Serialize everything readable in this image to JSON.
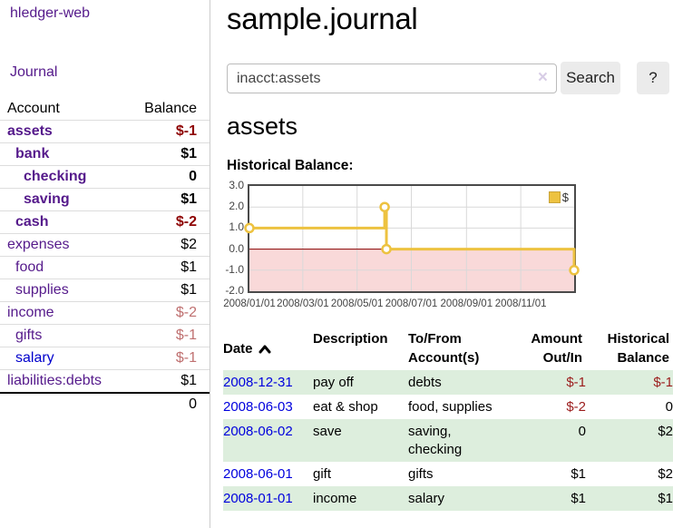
{
  "sidebar": {
    "brand": "hledger-web",
    "nav_journal": "Journal",
    "accounts_table": {
      "headers": {
        "account": "Account",
        "balance": "Balance"
      },
      "rows": [
        {
          "account": "assets",
          "depth": 0,
          "bold": true,
          "balance": "$-1",
          "balance_style": "neg-strong"
        },
        {
          "account": "bank",
          "depth": 1,
          "bold": true,
          "balance": "$1",
          "balance_style": "pos"
        },
        {
          "account": "checking",
          "depth": 2,
          "bold": true,
          "balance": "0",
          "balance_style": "pos"
        },
        {
          "account": "saving",
          "depth": 2,
          "bold": true,
          "balance": "$1",
          "balance_style": "pos"
        },
        {
          "account": "cash",
          "depth": 1,
          "bold": true,
          "balance": "$-2",
          "balance_style": "neg-strong"
        },
        {
          "account": "expenses",
          "depth": 0,
          "bold": false,
          "balance": "$2",
          "balance_style": "pos"
        },
        {
          "account": "food",
          "depth": 1,
          "bold": false,
          "balance": "$1",
          "balance_style": "pos"
        },
        {
          "account": "supplies",
          "depth": 1,
          "bold": false,
          "balance": "$1",
          "balance_style": "pos"
        },
        {
          "account": "income",
          "depth": 0,
          "bold": false,
          "balance": "$-2",
          "balance_style": "neg-soft"
        },
        {
          "account": "gifts",
          "depth": 1,
          "bold": false,
          "balance": "$-1",
          "balance_style": "neg-soft"
        },
        {
          "account": "salary",
          "depth": 1,
          "bold": false,
          "balance": "$-1",
          "balance_style": "neg-soft",
          "link_color": "blue"
        },
        {
          "account": "liabilities:debts",
          "depth": 0,
          "bold": false,
          "balance": "$1",
          "balance_style": "pos"
        }
      ],
      "total": "0"
    }
  },
  "main": {
    "title": "sample.journal",
    "search": {
      "value": "inacct:assets",
      "clear_icon": "×",
      "button_label": "Search",
      "help_label": "?"
    },
    "account_heading": "assets",
    "chart_label": "Historical Balance:"
  },
  "chart_data": {
    "type": "line",
    "step": true,
    "title": "Historical Balance",
    "series": [
      {
        "name": "$",
        "color": "#edc240",
        "points": [
          [
            "2008-01-01",
            1
          ],
          [
            "2008-06-01",
            2
          ],
          [
            "2008-06-03",
            0
          ],
          [
            "2008-12-31",
            -1
          ]
        ]
      }
    ],
    "xlim": [
      "2008-01-01",
      "2008-12-31"
    ],
    "ylim": [
      -2,
      3
    ],
    "y_ticks": [
      "3.0",
      "2.0",
      "1.0",
      "0.0",
      "-1.0",
      "-2.0"
    ],
    "x_ticks": [
      "2008/01/01",
      "2008/03/01",
      "2008/05/01",
      "2008/07/01",
      "2008/09/01",
      "2008/11/01"
    ],
    "legend": [
      {
        "label": "$",
        "color": "#edc240"
      }
    ],
    "negative_fill": "#f9d9d9",
    "zero_line_color": "#8b0000",
    "grid_color": "#d9d9d9",
    "legend_position": "top-right",
    "grid": true
  },
  "register": {
    "headers": {
      "date": "Date",
      "sort_dir": "asc",
      "description": "Description",
      "accounts_l1": "To/From",
      "accounts_l2": "Account(s)",
      "amount_l1": "Amount",
      "amount_l2": "Out/In",
      "balance_l1": "Historical",
      "balance_l2": "Balance"
    },
    "rows": [
      {
        "date": "2008-12-31",
        "description": "pay off",
        "accounts": "debts",
        "amount": "$-1",
        "amount_neg": true,
        "balance": "$-1",
        "balance_neg": true
      },
      {
        "date": "2008-06-03",
        "description": "eat & shop",
        "accounts": "food, supplies",
        "amount": "$-2",
        "amount_neg": true,
        "balance": "0",
        "balance_neg": false
      },
      {
        "date": "2008-06-02",
        "description": "save",
        "accounts": "saving, checking",
        "amount": "0",
        "amount_neg": false,
        "balance": "$2",
        "balance_neg": false
      },
      {
        "date": "2008-06-01",
        "description": "gift",
        "accounts": "gifts",
        "amount": "$1",
        "amount_neg": false,
        "balance": "$2",
        "balance_neg": false
      },
      {
        "date": "2008-01-01",
        "description": "income",
        "accounts": "salary",
        "amount": "$1",
        "amount_neg": false,
        "balance": "$1",
        "balance_neg": false
      }
    ]
  }
}
